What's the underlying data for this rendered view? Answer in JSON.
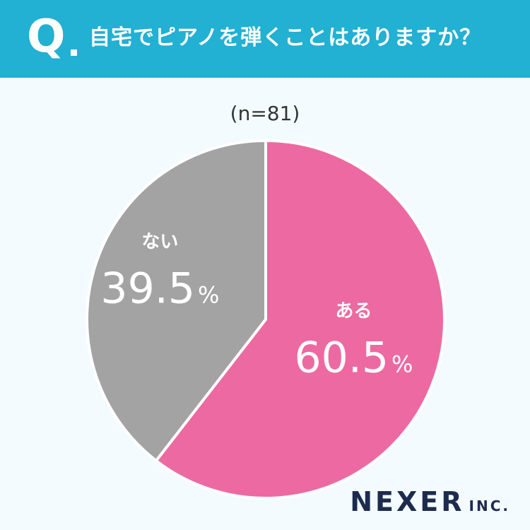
{
  "header": {
    "q_label": "Q",
    "question": "自宅でピアノを弾くことはありますか？"
  },
  "chart_data": {
    "type": "pie",
    "sample_label": "(n=81)",
    "slices": [
      {
        "label": "ある",
        "value": 60.5,
        "value_label": "60.5",
        "unit": "%",
        "color": "#ec6aa1"
      },
      {
        "label": "ない",
        "value": 39.5,
        "value_label": "39.5",
        "unit": "%",
        "color": "#a3a3a3"
      }
    ],
    "start": "top",
    "direction": "clockwise"
  },
  "brand": {
    "name": "NEXER",
    "suffix": "INC."
  }
}
